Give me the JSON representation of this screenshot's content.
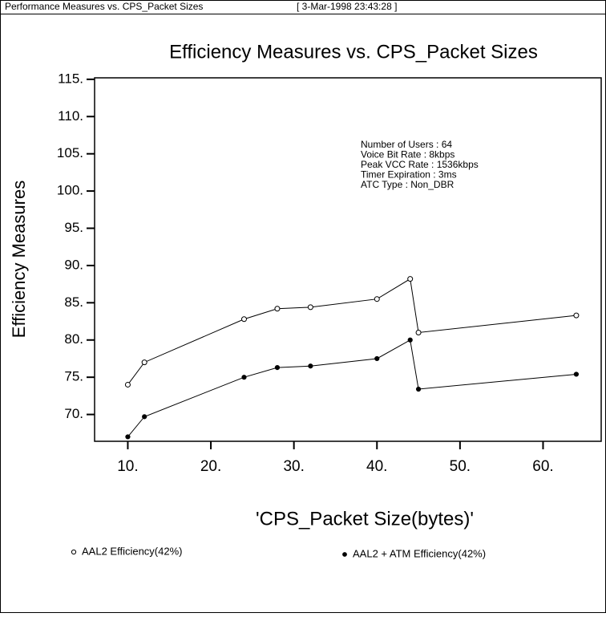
{
  "window": {
    "title": "Performance Measures vs. CPS_Packet Sizes",
    "timestamp": "[ 3-Mar-1998 23:43:28 ]"
  },
  "chart_data": {
    "type": "line",
    "title": "Efficiency Measures vs. CPS_Packet Sizes",
    "x_label": "'CPS_Packet Size(bytes)'",
    "y_label": "Efficiency Measures",
    "annotations": [
      "Number of Users : 64",
      "Voice Bit Rate : 8kbps",
      "Peak VCC Rate : 1536kbps",
      "Timer Expiration :  3ms",
      "ATC Type : Non_DBR"
    ],
    "x": [
      10,
      12,
      24,
      28,
      32,
      40,
      44,
      45,
      64
    ],
    "series": [
      {
        "name": "AAL2 Efficiency(42%)",
        "color": "#000000",
        "marker": "open",
        "values": [
          74,
          77,
          82.8,
          84.2,
          84.4,
          85.5,
          88.2,
          81,
          83.3
        ]
      },
      {
        "name": "AAL2 + ATM  Efficiency(42%)",
        "color": "#000000",
        "marker": "filled",
        "values": [
          67,
          69.7,
          75,
          76.3,
          76.5,
          77.5,
          80,
          73.4,
          75.4
        ]
      }
    ],
    "xlim": [
      6,
      67
    ],
    "ylim": [
      66.4,
      115.2
    ],
    "xticks": [
      {
        "value": 10,
        "label": "10."
      },
      {
        "value": 20,
        "label": "20."
      },
      {
        "value": 30,
        "label": "30."
      },
      {
        "value": 40,
        "label": "40."
      },
      {
        "value": 50,
        "label": "50."
      },
      {
        "value": 60,
        "label": "60."
      }
    ],
    "yticks": [
      {
        "value": 70,
        "label": "70."
      },
      {
        "value": 75,
        "label": "75."
      },
      {
        "value": 80,
        "label": "80."
      },
      {
        "value": 85,
        "label": "85."
      },
      {
        "value": 90,
        "label": "90."
      },
      {
        "value": 95,
        "label": "95."
      },
      {
        "value": 100,
        "label": "100."
      },
      {
        "value": 105,
        "label": "105."
      },
      {
        "value": 110,
        "label": "110."
      },
      {
        "value": 115,
        "label": "115."
      }
    ]
  }
}
